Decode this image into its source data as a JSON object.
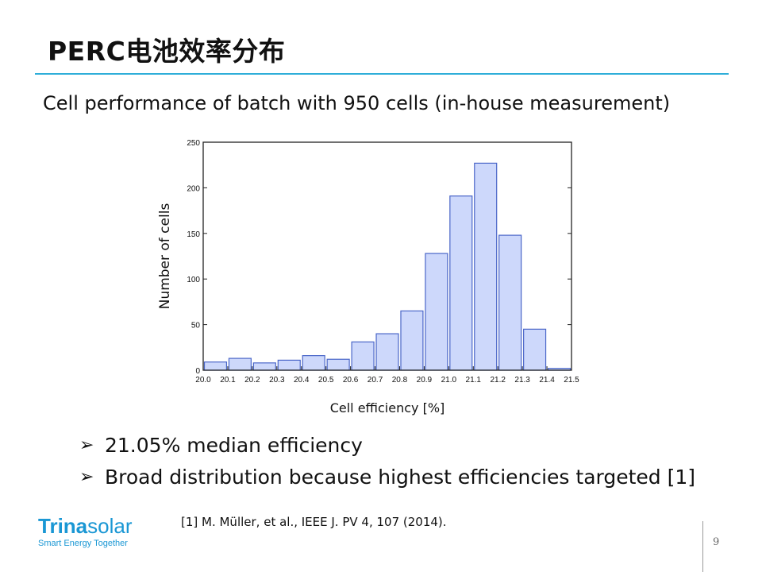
{
  "slide": {
    "title": "PERC电池效率分布",
    "subtitle": "Cell performance of batch with 950 cells (in-house measurement)",
    "bullets": [
      {
        "marker": "➢",
        "text": "21.05% median efficiency"
      },
      {
        "marker": "➢",
        "text": "Broad distribution because highest efficiencies targeted [1]"
      }
    ],
    "reference": "[1] M. Müller, et al., IEEE J. PV 4, 107 (2014).",
    "page_number": "9",
    "logo": {
      "word_bold": "Trina",
      "word_light": "solar",
      "tagline": "Smart Energy Together"
    }
  },
  "colors": {
    "accent_rule": "#2eaed9",
    "bar_fill": "#cdd8fb",
    "bar_stroke": "#4a66c8",
    "logo": "#1a97d4"
  },
  "chart_data": {
    "type": "bar",
    "title": "",
    "xlabel": "Cell efficiency [%]",
    "ylabel": "Number of cells",
    "ylim": [
      0,
      250
    ],
    "yticks": [
      "0",
      "50",
      "100",
      "150",
      "200",
      "250"
    ],
    "xticks": [
      "20.0",
      "20.1",
      "20.2",
      "20.3",
      "20.4",
      "20.5",
      "20.6",
      "20.7",
      "20.8",
      "20.9",
      "21.0",
      "21.1",
      "21.2",
      "21.3",
      "21.4",
      "21.5"
    ],
    "bin_edges": [
      20.0,
      20.1,
      20.2,
      20.3,
      20.4,
      20.5,
      20.6,
      20.7,
      20.8,
      20.9,
      21.0,
      21.1,
      21.2,
      21.3,
      21.4,
      21.5
    ],
    "values": [
      9,
      13,
      8,
      11,
      16,
      12,
      31,
      40,
      65,
      128,
      191,
      227,
      148,
      45,
      2
    ],
    "grid": false
  }
}
